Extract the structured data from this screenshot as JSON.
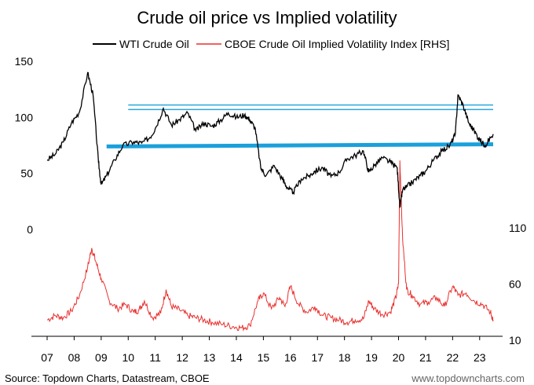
{
  "chart_data": {
    "type": "line",
    "title": "Crude oil price vs Implied volatility",
    "x_ticks": [
      "07",
      "08",
      "09",
      "10",
      "11",
      "12",
      "13",
      "14",
      "15",
      "16",
      "17",
      "18",
      "19",
      "20",
      "21",
      "22",
      "23"
    ],
    "y_left": {
      "ticks": [
        150,
        100,
        50,
        0
      ],
      "range": [
        0,
        150
      ]
    },
    "y_right": {
      "ticks": [
        110,
        60,
        10
      ],
      "range": [
        10,
        110
      ]
    },
    "series": [
      {
        "name": "WTI Crude Oil",
        "color": "#000000",
        "axis": "left",
        "x": [
          2007.0,
          2007.3,
          2007.6,
          2007.9,
          2008.2,
          2008.5,
          2008.7,
          2008.9,
          2009.0,
          2009.2,
          2009.5,
          2009.8,
          2010.2,
          2010.5,
          2010.8,
          2011.0,
          2011.3,
          2011.6,
          2011.9,
          2012.2,
          2012.5,
          2012.8,
          2013.1,
          2013.4,
          2013.7,
          2014.0,
          2014.3,
          2014.5,
          2014.7,
          2014.9,
          2015.1,
          2015.4,
          2015.7,
          2015.9,
          2016.1,
          2016.4,
          2016.7,
          2016.9,
          2017.2,
          2017.5,
          2017.8,
          2018.1,
          2018.4,
          2018.7,
          2018.9,
          2019.1,
          2019.4,
          2019.7,
          2019.95,
          2020.05,
          2020.15,
          2020.3,
          2020.5,
          2020.8,
          2021.0,
          2021.3,
          2021.6,
          2021.9,
          2022.1,
          2022.2,
          2022.4,
          2022.6,
          2022.8,
          2023.0,
          2023.2,
          2023.5
        ],
        "y": [
          62,
          67,
          78,
          95,
          105,
          140,
          120,
          60,
          40,
          48,
          62,
          75,
          78,
          77,
          82,
          90,
          108,
          93,
          98,
          104,
          88,
          95,
          92,
          97,
          104,
          100,
          102,
          98,
          90,
          55,
          48,
          57,
          45,
          37,
          33,
          45,
          48,
          52,
          55,
          47,
          51,
          63,
          66,
          70,
          51,
          57,
          64,
          60,
          55,
          20,
          35,
          38,
          42,
          48,
          52,
          62,
          70,
          75,
          85,
          120,
          110,
          95,
          88,
          80,
          75,
          85
        ]
      },
      {
        "name": "CBOE Crude Oil Implied Volatility Index [RHS]",
        "color": "#e8312f",
        "axis": "right",
        "x": [
          2007.0,
          2007.3,
          2007.6,
          2007.9,
          2008.2,
          2008.5,
          2008.65,
          2008.8,
          2009.0,
          2009.3,
          2009.6,
          2009.9,
          2010.2,
          2010.4,
          2010.6,
          2010.9,
          2011.2,
          2011.4,
          2011.6,
          2011.9,
          2012.2,
          2012.5,
          2012.8,
          2013.1,
          2013.5,
          2013.9,
          2014.2,
          2014.5,
          2014.8,
          2015.0,
          2015.3,
          2015.6,
          2015.8,
          2016.0,
          2016.3,
          2016.6,
          2016.9,
          2017.2,
          2017.5,
          2017.8,
          2018.1,
          2018.4,
          2018.7,
          2018.9,
          2019.1,
          2019.4,
          2019.7,
          2019.9,
          2020.0,
          2020.05,
          2020.15,
          2020.3,
          2020.5,
          2020.8,
          2021.1,
          2021.4,
          2021.7,
          2022.0,
          2022.2,
          2022.5,
          2022.8,
          2023.1,
          2023.4,
          2023.5
        ],
        "y": [
          28,
          32,
          30,
          36,
          50,
          75,
          92,
          80,
          65,
          45,
          38,
          42,
          35,
          37,
          45,
          30,
          34,
          55,
          40,
          37,
          32,
          30,
          28,
          26,
          24,
          22,
          21,
          23,
          45,
          52,
          38,
          48,
          40,
          58,
          42,
          35,
          40,
          32,
          30,
          28,
          26,
          28,
          29,
          45,
          38,
          33,
          35,
          48,
          60,
          170,
          100,
          55,
          50,
          42,
          44,
          48,
          40,
          58,
          50,
          52,
          45,
          42,
          35,
          28
        ]
      }
    ],
    "annotations": [
      {
        "type": "horizontal-band",
        "color": "#29a8e0",
        "from_x": 2010.0,
        "to_x": 2023.5,
        "y": 111
      },
      {
        "type": "horizontal-band",
        "color": "#29a8e0",
        "from_x": 2010.0,
        "to_x": 2023.5,
        "y": 107
      },
      {
        "type": "thick-line",
        "color": "#1aa0db",
        "from": [
          2009.2,
          74
        ],
        "to": [
          2023.5,
          76
        ]
      }
    ],
    "legend_position": "top-center",
    "grid": false
  },
  "footer": {
    "source": "Source: Topdown Charts, Datastream, CBOE",
    "website": "www.topdowncharts.com"
  }
}
